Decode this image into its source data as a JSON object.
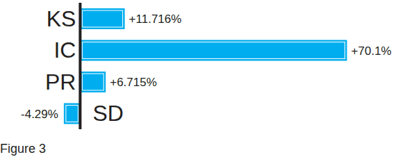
{
  "chart_data": {
    "type": "bar",
    "title": "Figure 3",
    "orientation": "horizontal",
    "categories": [
      "KS",
      "IC",
      "PR",
      "SD"
    ],
    "values": [
      11.716,
      70.1,
      6.715,
      -4.29
    ],
    "value_labels": [
      "+11.716%",
      "+70.1%",
      "+6.715%",
      "-4.29%"
    ],
    "data_labels": true,
    "color": "#00aeef",
    "xlim": [
      -5,
      72
    ],
    "tick_labels": false,
    "grid": false
  }
}
